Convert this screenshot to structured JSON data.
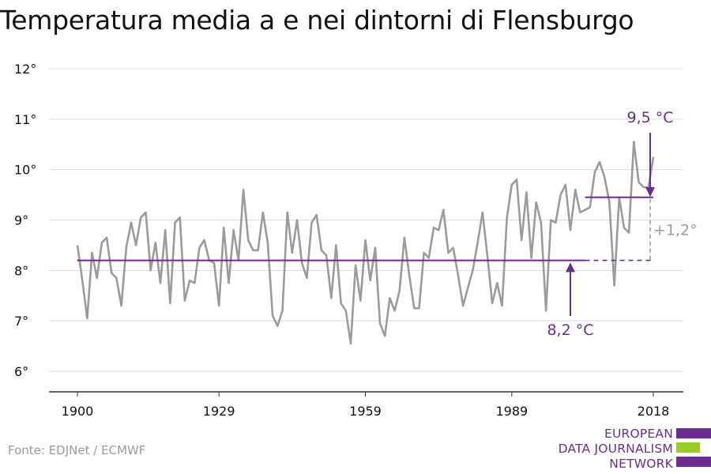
{
  "chart_data": {
    "type": "line",
    "title": "Temperatura media a e nei dintorni di Flensburgo",
    "xlabel": "",
    "ylabel": "",
    "xlim": [
      1900,
      2018
    ],
    "ylim": [
      6,
      12
    ],
    "x_ticks": [
      "1900",
      "1929",
      "1959",
      "1989",
      "2018"
    ],
    "y_ticks": [
      "6°",
      "7°",
      "8°",
      "9°",
      "10°",
      "11°",
      "12°"
    ],
    "grid": true,
    "series": [
      {
        "color": "#9b9b9b",
        "x": [
          1900,
          1901,
          1902,
          1903,
          1904,
          1905,
          1906,
          1907,
          1908,
          1909,
          1910,
          1911,
          1912,
          1913,
          1914,
          1915,
          1916,
          1917,
          1918,
          1919,
          1920,
          1921,
          1922,
          1923,
          1924,
          1925,
          1926,
          1927,
          1928,
          1929,
          1930,
          1931,
          1932,
          1933,
          1934,
          1935,
          1936,
          1937,
          1938,
          1939,
          1940,
          1941,
          1942,
          1943,
          1944,
          1945,
          1946,
          1947,
          1948,
          1949,
          1950,
          1951,
          1952,
          1953,
          1954,
          1955,
          1956,
          1957,
          1958,
          1959,
          1960,
          1961,
          1962,
          1963,
          1964,
          1965,
          1966,
          1967,
          1968,
          1969,
          1970,
          1971,
          1972,
          1973,
          1974,
          1975,
          1976,
          1977,
          1978,
          1979,
          1980,
          1981,
          1982,
          1983,
          1984,
          1985,
          1986,
          1987,
          1988,
          1989,
          1990,
          1991,
          1992,
          1993,
          1994,
          1995,
          1996,
          1997,
          1998,
          1999,
          2000,
          2001,
          2002,
          2003,
          2004,
          2005,
          2006,
          2007,
          2008,
          2009,
          2010,
          2011,
          2012,
          2013,
          2014,
          2015,
          2016,
          2017,
          2018
        ],
        "values": [
          8.5,
          7.8,
          7.05,
          8.35,
          7.85,
          8.55,
          8.65,
          7.95,
          7.85,
          7.3,
          8.45,
          8.95,
          8.5,
          9.05,
          9.15,
          8.0,
          8.55,
          7.75,
          8.8,
          7.35,
          8.95,
          9.05,
          7.4,
          7.8,
          7.75,
          8.45,
          8.6,
          8.2,
          8.15,
          7.3,
          8.85,
          7.75,
          8.8,
          8.2,
          9.6,
          8.6,
          8.4,
          8.4,
          9.15,
          8.55,
          7.1,
          6.9,
          7.2,
          9.15,
          8.35,
          9.0,
          8.15,
          7.85,
          8.95,
          9.1,
          8.4,
          8.3,
          7.45,
          8.5,
          7.35,
          7.2,
          6.55,
          8.1,
          7.4,
          8.6,
          7.8,
          8.45,
          6.95,
          6.7,
          7.45,
          7.2,
          7.6,
          8.65,
          7.9,
          7.25,
          7.25,
          8.35,
          8.25,
          8.85,
          8.8,
          9.2,
          8.35,
          8.45,
          7.9,
          7.3,
          7.65,
          8.0,
          8.55,
          9.15,
          8.3,
          7.35,
          7.75,
          7.3,
          9.05,
          9.7,
          9.8,
          8.6,
          9.55,
          8.25,
          9.35,
          8.95,
          7.2,
          9.0,
          8.95,
          9.5,
          9.7,
          8.8,
          9.6,
          9.15,
          9.2,
          9.25,
          9.95,
          10.15,
          9.85,
          9.35,
          7.7,
          9.45,
          8.85,
          8.75,
          10.55,
          9.75,
          9.65,
          9.65,
          10.25
        ]
      }
    ],
    "reference_lines": [
      {
        "value": 8.2,
        "label": "8,2 °C",
        "color": "#6a2c91",
        "x_from": 1900,
        "x_to": 2018
      },
      {
        "value": 9.45,
        "label": "9,5 °C",
        "color": "#6a2c91",
        "x_from": 2004,
        "x_to": 2018
      }
    ],
    "difference_label": "+1,2°",
    "difference_color": "#9b9b9b"
  },
  "source": "Fonte: EDJNet / ECMWF",
  "logo": {
    "lines": [
      "EUROPEAN",
      "DATA JOURNALISM",
      "NETWORK"
    ],
    "colors": {
      "text": "#6b2d8f",
      "bar_top": "#6b2d8f",
      "bar_mid": "#9ccc2c",
      "bar_bottom": "#6b2d8f"
    }
  }
}
